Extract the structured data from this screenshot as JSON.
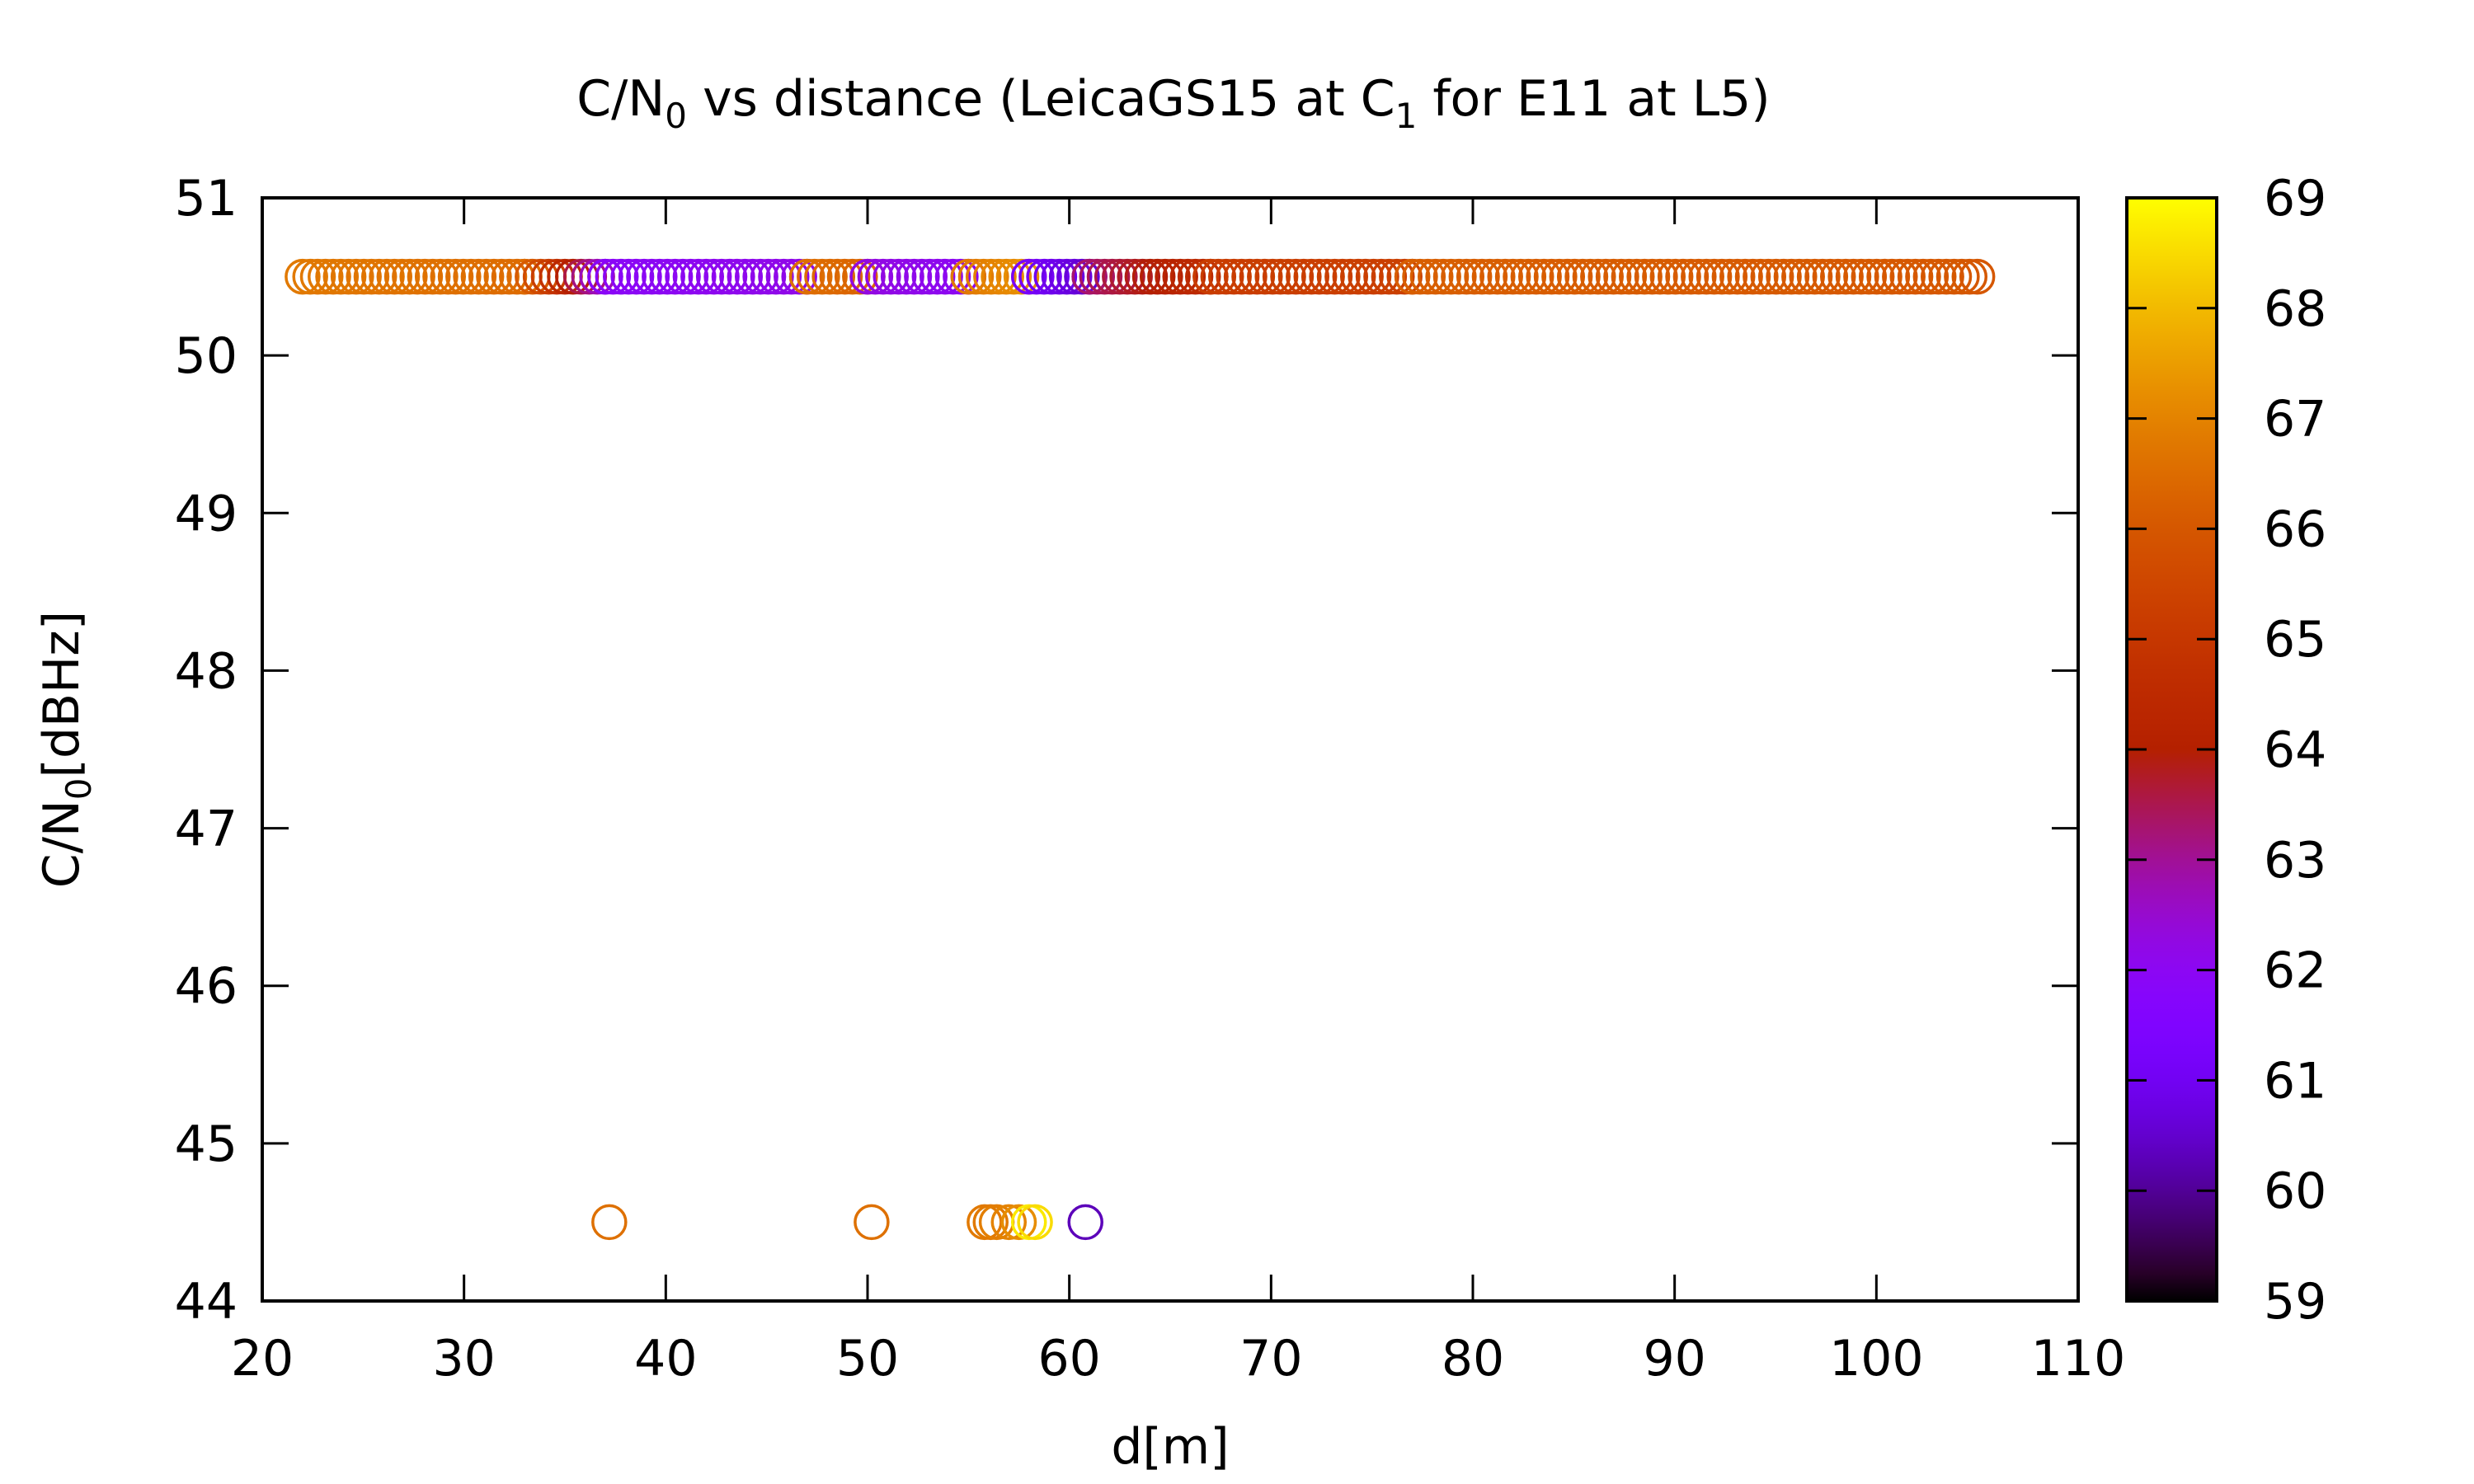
{
  "chart_data": {
    "type": "scatter",
    "title": {
      "pre": "C/N",
      "sub1": "0",
      "mid": " vs distance (LeicaGS15 at C",
      "sub2": "1",
      "post": " for E11 at L5)"
    },
    "xlabel": "d[m]",
    "ylabel": {
      "pre": "C/N",
      "sub": "0",
      "post": "[dBHz]"
    },
    "xlim": [
      20,
      110
    ],
    "ylim": [
      44,
      51
    ],
    "x_ticks": [
      20,
      30,
      40,
      50,
      60,
      70,
      80,
      90,
      100,
      110
    ],
    "y_ticks": [
      44,
      45,
      46,
      47,
      48,
      49,
      50,
      51
    ],
    "colorbar": {
      "range": [
        59,
        69
      ],
      "ticks": [
        59,
        60,
        61,
        62,
        63,
        64,
        65,
        66,
        67,
        68,
        69
      ],
      "palette": "gnuplot pm3d default (black-purple-red-orange-yellow)"
    },
    "marker": "open circle",
    "grid": false,
    "legend": "none",
    "series": [
      {
        "segments": [
          {
            "x_from": 22.0,
            "x_to": 33.0,
            "y": 50.5,
            "c_from": 66.8,
            "c_to": 66.5
          },
          {
            "x_from": 33.0,
            "x_to": 37.0,
            "y": 50.5,
            "c_from": 66.5,
            "c_to": 62.3
          },
          {
            "x_from": 37.0,
            "x_to": 47.0,
            "y": 50.5,
            "c_from": 61.9,
            "c_to": 62.2
          },
          {
            "x_from": 47.0,
            "x_to": 50.0,
            "y": 50.5,
            "c_from": 66.6,
            "c_to": 66.3
          },
          {
            "x_from": 50.0,
            "x_to": 55.0,
            "y": 50.5,
            "c_from": 62.3,
            "c_to": 62.0
          },
          {
            "x_from": 55.0,
            "x_to": 58.0,
            "y": 50.5,
            "c_from": 66.8,
            "c_to": 67.3
          },
          {
            "x_from": 58.0,
            "x_to": 61.0,
            "y": 50.5,
            "c_from": 61.2,
            "c_to": 60.5
          },
          {
            "x_from": 61.0,
            "x_to": 67.0,
            "y": 50.5,
            "c_from": 63.3,
            "c_to": 64.6
          },
          {
            "x_from": 67.0,
            "x_to": 77.0,
            "y": 50.5,
            "c_from": 65.2,
            "c_to": 65.3
          },
          {
            "x_from": 77.0,
            "x_to": 105.0,
            "y": 50.5,
            "c_from": 66.2,
            "c_to": 66.0
          }
        ],
        "points": [
          {
            "x": 37.2,
            "y": 44.5,
            "c": 66.6
          },
          {
            "x": 50.2,
            "y": 44.5,
            "c": 66.6
          },
          {
            "x": 55.8,
            "y": 44.5,
            "c": 66.8
          },
          {
            "x": 56.1,
            "y": 44.5,
            "c": 66.8
          },
          {
            "x": 56.4,
            "y": 44.5,
            "c": 66.9
          },
          {
            "x": 57.0,
            "y": 44.5,
            "c": 67.0
          },
          {
            "x": 57.5,
            "y": 44.5,
            "c": 67.2
          },
          {
            "x": 58.0,
            "y": 44.5,
            "c": 68.7
          },
          {
            "x": 58.3,
            "y": 44.5,
            "c": 68.5
          },
          {
            "x": 60.8,
            "y": 44.5,
            "c": 60.3
          }
        ]
      }
    ]
  }
}
